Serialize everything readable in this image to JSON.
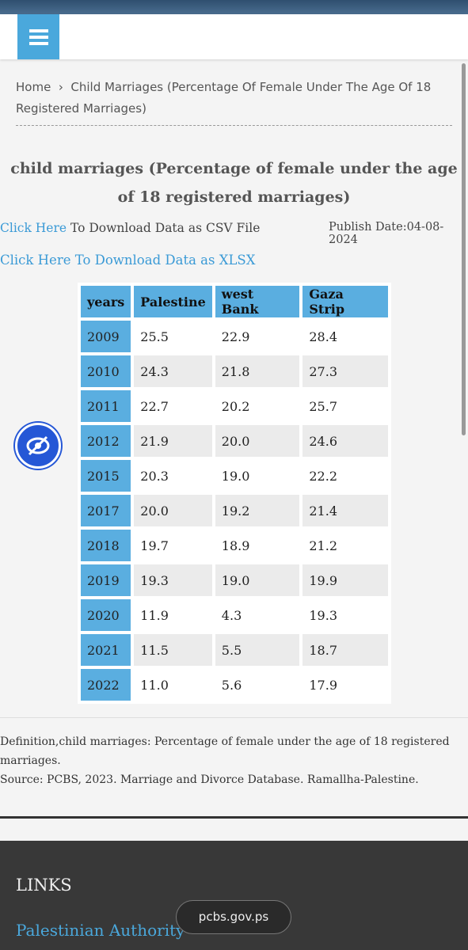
{
  "breadcrumb": {
    "home": "Home",
    "current": "Child Marriages (Percentage Of Female Under The Age Of 18 Registered Marriages)"
  },
  "title": "child marriages (Percentage of female under the age of 18 registered marriages)",
  "downloads": {
    "csv_link": "Click Here",
    "csv_text": "To Download Data as CSV File",
    "publish_date": "Publish Date:04-08-2024",
    "xlsx_link": "Click Here To Download Data as XLSX"
  },
  "table": {
    "header": [
      "years",
      "Palestine",
      "west Bank",
      "Gaza Strip"
    ],
    "rows": [
      [
        "2009",
        "25.5",
        "22.9",
        "28.4"
      ],
      [
        "2010",
        "24.3",
        "21.8",
        "27.3"
      ],
      [
        "2011",
        "22.7",
        "20.2",
        "25.7"
      ],
      [
        "2012",
        "21.9",
        "20.0",
        "24.6"
      ],
      [
        "2015",
        "20.3",
        "19.0",
        "22.2"
      ],
      [
        "2017",
        "20.0",
        "19.2",
        "21.4"
      ],
      [
        "2018",
        "19.7",
        "18.9",
        "21.2"
      ],
      [
        "2019",
        "19.3",
        "19.0",
        "19.9"
      ],
      [
        "2020",
        "11.9",
        "4.3",
        "19.3"
      ],
      [
        "2021",
        "11.5",
        "5.5",
        "18.7"
      ],
      [
        "2022",
        "11.0",
        "5.6",
        "17.9"
      ]
    ]
  },
  "notes": {
    "definition": "Definition,child marriages: Percentage of female under the age of 18 registered marriages.",
    "source": "Source: PCBS, 2023. Marriage and Divorce Database. Ramallha-Palestine."
  },
  "footer": {
    "heading": "LINKS",
    "link": "Palestinian Authority"
  },
  "url": "pcbs.gov.ps"
}
